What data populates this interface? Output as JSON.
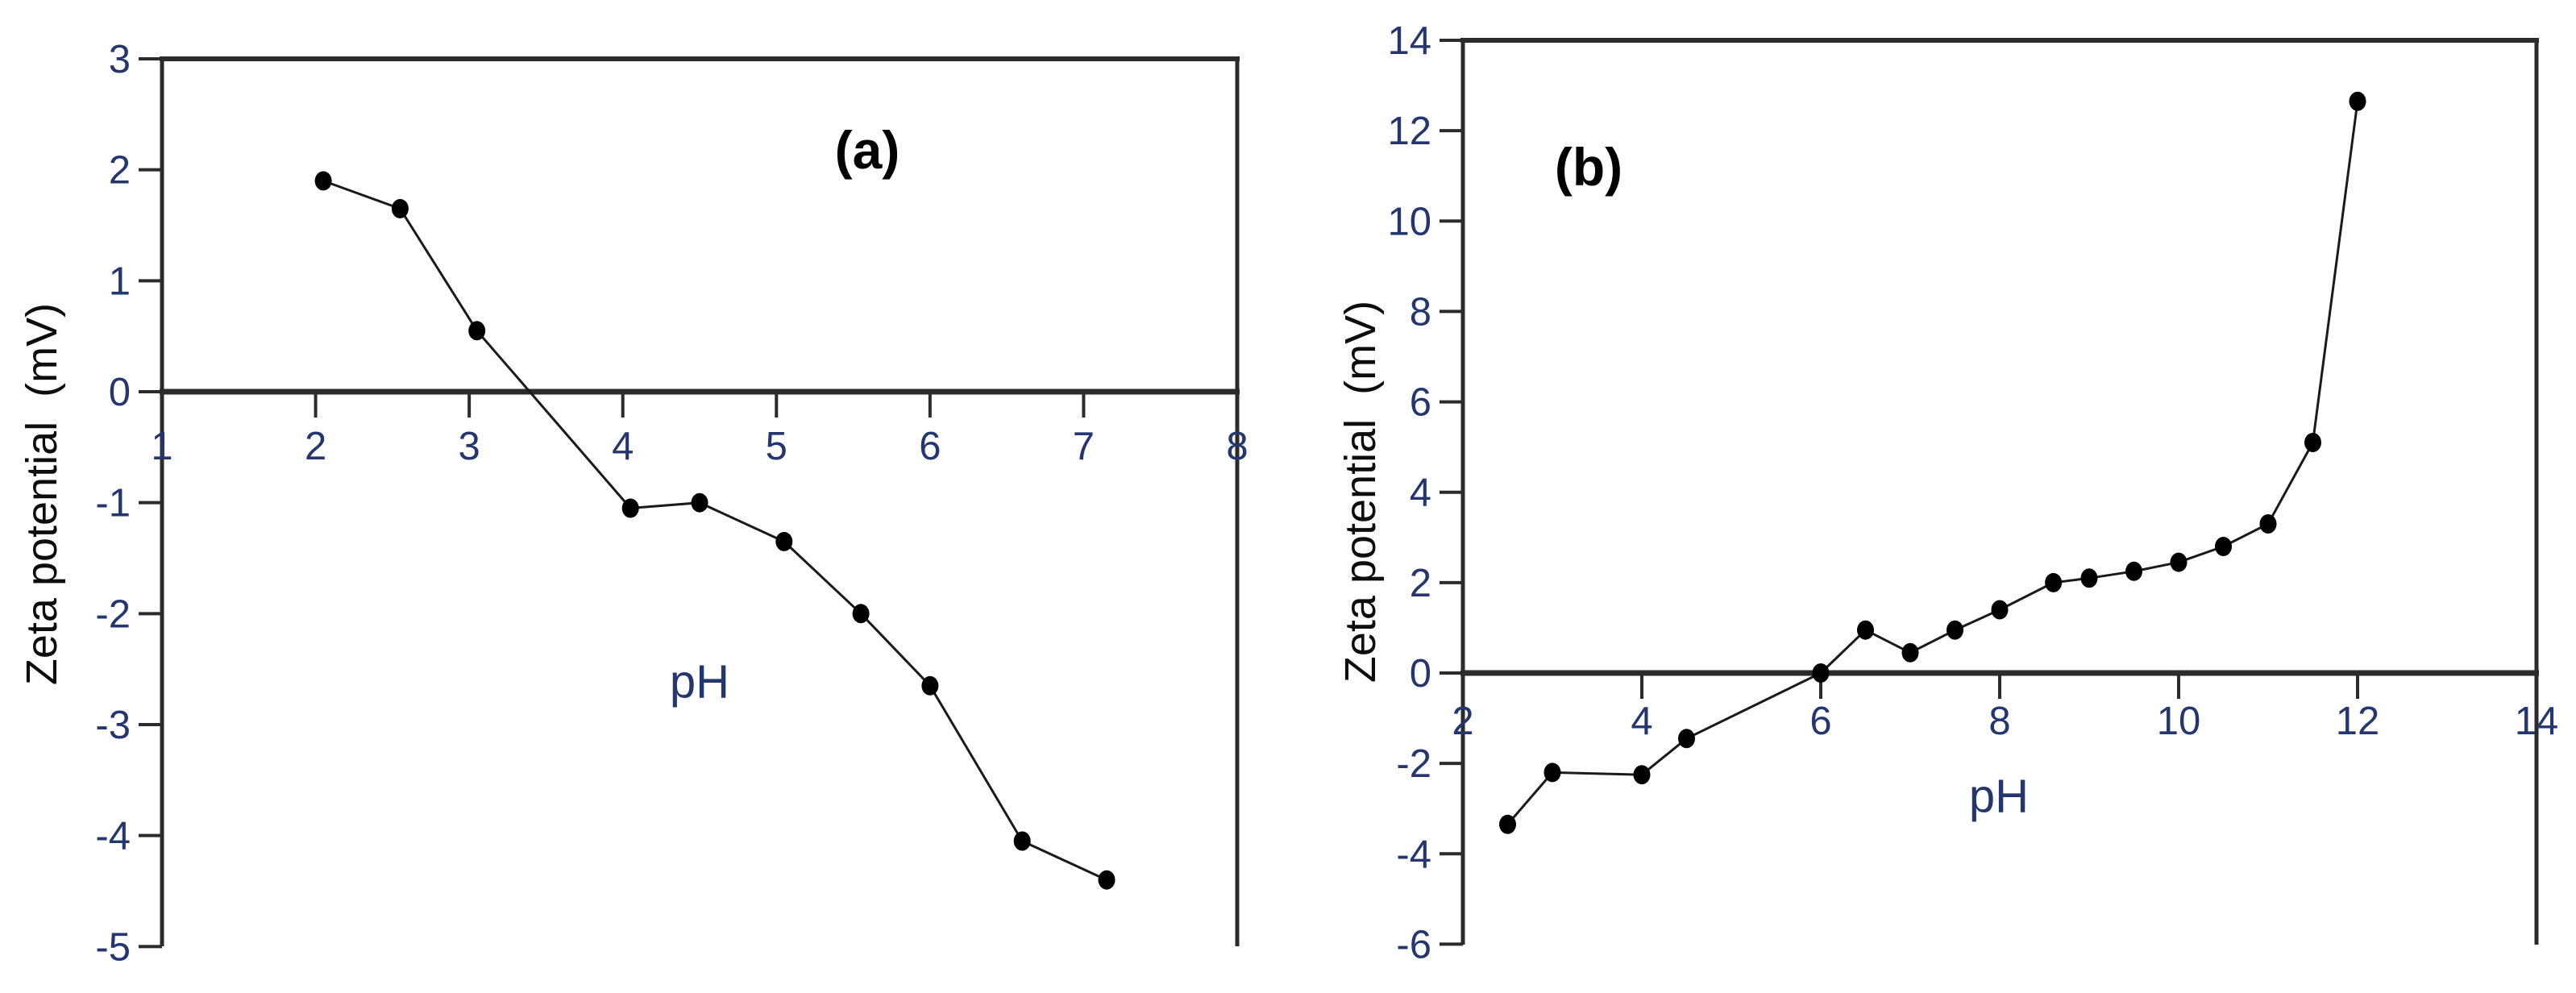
{
  "figure": {
    "description": "Two-panel scientific line plot of zeta potential versus pH",
    "background_color": "#ffffff",
    "axis_color": "#2b2b2b",
    "series_line_color": "#1a1a1a",
    "marker_color": "#000000",
    "tick_label_color": "#23366f",
    "title_color": "#0d0d0d"
  },
  "chart_data": [
    {
      "type": "line",
      "panel_label": "(a)",
      "xlabel": "pH",
      "ylabel": "Zeta potential  (mV)",
      "xlim": [
        1,
        8
      ],
      "ylim": [
        -5,
        3
      ],
      "x_ticks": [
        1,
        2,
        3,
        4,
        5,
        6,
        7,
        8
      ],
      "y_ticks": [
        3,
        2,
        1,
        0,
        -1,
        -2,
        -3,
        -4,
        -5
      ],
      "grid": false,
      "legend": "none",
      "x_axis_at_y": 0,
      "marker": "filled-circle",
      "series": [
        {
          "name": "zeta-potential-a",
          "points": [
            [
              2.05,
              1.9
            ],
            [
              2.55,
              1.65
            ],
            [
              3.05,
              0.55
            ],
            [
              4.05,
              -1.05
            ],
            [
              4.5,
              -1.0
            ],
            [
              5.05,
              -1.35
            ],
            [
              5.55,
              -2.0
            ],
            [
              6.0,
              -2.65
            ],
            [
              6.6,
              -4.05
            ],
            [
              7.15,
              -4.4
            ]
          ]
        }
      ]
    },
    {
      "type": "line",
      "panel_label": "(b)",
      "xlabel": "pH",
      "ylabel": "Zeta potential  (mV)",
      "xlim": [
        2,
        14
      ],
      "ylim": [
        -6,
        14
      ],
      "x_ticks": [
        2,
        4,
        6,
        8,
        10,
        12,
        14
      ],
      "y_ticks": [
        14,
        12,
        10,
        8,
        6,
        4,
        2,
        0,
        -2,
        -4,
        -6
      ],
      "grid": false,
      "legend": "none",
      "x_axis_at_y": 0,
      "marker": "filled-circle",
      "series": [
        {
          "name": "zeta-potential-b",
          "points": [
            [
              2.5,
              -3.35
            ],
            [
              3.0,
              -2.2
            ],
            [
              4.0,
              -2.25
            ],
            [
              4.5,
              -1.45
            ],
            [
              6.0,
              0.0
            ],
            [
              6.5,
              0.95
            ],
            [
              7.0,
              0.45
            ],
            [
              7.5,
              0.95
            ],
            [
              8.0,
              1.4
            ],
            [
              8.6,
              2.0
            ],
            [
              9.0,
              2.1
            ],
            [
              9.5,
              2.25
            ],
            [
              10.0,
              2.45
            ],
            [
              10.5,
              2.8
            ],
            [
              11.0,
              3.3
            ],
            [
              11.5,
              5.1
            ],
            [
              12.0,
              12.65
            ]
          ]
        }
      ]
    }
  ]
}
